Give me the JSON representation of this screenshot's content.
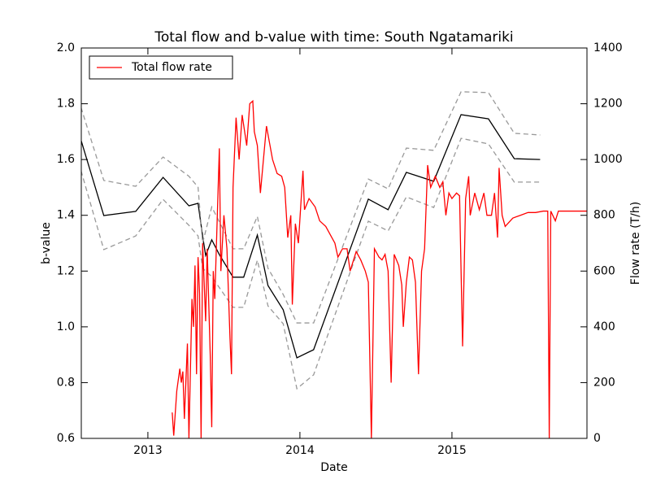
{
  "chart_data": {
    "type": "line",
    "title": "Total flow and b-value with time: South Ngatamariki",
    "xlabel": "Date",
    "ylabel": "b-value",
    "y2label": "Flow rate (T/h)",
    "xlim": [
      2012.562,
      2015.888
    ],
    "xticks": [
      2013,
      2014,
      2015
    ],
    "ylim": [
      0.6,
      2.0
    ],
    "yticks": [
      0.6,
      0.8,
      {
        "value": 1,
        "label": "1.0"
      },
      1.2,
      1.4,
      1.6,
      1.8,
      {
        "value": 2,
        "label": "2.0"
      }
    ],
    "y2lim": [
      0,
      1400
    ],
    "y2ticks": [
      0,
      200,
      400,
      600,
      800,
      1000,
      1200,
      1400
    ],
    "y2color": "#ff0000",
    "legend": "upper left",
    "series": [
      {
        "color": "#000000",
        "linestyle": "solid",
        "x": [
          2012.56,
          2012.71,
          2012.92,
          2013.1,
          2013.27,
          2013.33,
          2013.36,
          2013.38,
          2013.42,
          2013.47,
          2013.56,
          2013.63,
          2013.72,
          2013.79,
          2013.89,
          2013.98,
          2014.09,
          2014.45,
          2014.58,
          2014.7,
          2014.88,
          2015.06,
          2015.24,
          2015.41,
          2015.58
        ],
        "values": [
          1.67,
          1.399,
          1.414,
          1.536,
          1.434,
          1.443,
          1.326,
          1.256,
          1.312,
          1.259,
          1.178,
          1.178,
          1.329,
          1.148,
          1.061,
          0.889,
          0.918,
          1.458,
          1.42,
          1.554,
          1.522,
          1.761,
          1.746,
          1.603,
          1.6
        ]
      },
      {
        "color": "#999999",
        "linestyle": "dashed",
        "x": [
          2012.56,
          2012.71,
          2012.92,
          2013.1,
          2013.27,
          2013.33,
          2013.36,
          2013.42,
          2013.56,
          2013.63,
          2013.72,
          2013.79,
          2013.89,
          2013.98,
          2014.09,
          2014.45,
          2014.58,
          2014.7,
          2014.88,
          2015.06,
          2015.24,
          2015.41,
          2015.58
        ],
        "values": [
          1.787,
          1.525,
          1.504,
          1.609,
          1.54,
          1.501,
          1.3,
          1.43,
          1.28,
          1.28,
          1.396,
          1.21,
          1.116,
          1.014,
          1.014,
          1.53,
          1.495,
          1.641,
          1.633,
          1.843,
          1.84,
          1.694,
          1.688
        ]
      },
      {
        "color": "#999999",
        "linestyle": "dashed",
        "x": [
          2012.56,
          2012.71,
          2012.92,
          2013.1,
          2013.27,
          2013.33,
          2013.36,
          2013.42,
          2013.56,
          2013.63,
          2013.72,
          2013.79,
          2013.89,
          2013.98,
          2014.09,
          2014.45,
          2014.58,
          2014.7,
          2014.88,
          2015.06,
          2015.24,
          2015.41,
          2015.58
        ],
        "values": [
          1.56,
          1.277,
          1.326,
          1.457,
          1.364,
          1.326,
          1.21,
          1.18,
          1.07,
          1.07,
          1.239,
          1.075,
          1.011,
          0.778,
          0.828,
          1.379,
          1.344,
          1.466,
          1.428,
          1.676,
          1.656,
          1.519,
          1.519
        ]
      },
      {
        "name": "Total flow rate",
        "color": "#ff0000",
        "linestyle": "solid",
        "axis": "y2",
        "x": [
          2013.16,
          2013.17,
          2013.19,
          2013.21,
          2013.22,
          2013.23,
          2013.24,
          2013.26,
          2013.27,
          2013.29,
          2013.3,
          2013.31,
          2013.32,
          2013.33,
          2013.34,
          2013.35,
          2013.36,
          2013.38,
          2013.39,
          2013.41,
          2013.42,
          2013.43,
          2013.44,
          2013.47,
          2013.48,
          2013.5,
          2013.52,
          2013.54,
          2013.55,
          2013.56,
          2013.58,
          2013.6,
          2013.62,
          2013.65,
          2013.67,
          2013.69,
          2013.7,
          2013.72,
          2013.74,
          2013.76,
          2013.78,
          2013.8,
          2013.82,
          2013.85,
          2013.88,
          2013.9,
          2013.92,
          2013.94,
          2013.95,
          2013.97,
          2013.99,
          2014.02,
          2014.03,
          2014.06,
          2014.1,
          2014.13,
          2014.17,
          2014.2,
          2014.23,
          2014.25,
          2014.28,
          2014.31,
          2014.33,
          2014.37,
          2014.4,
          2014.43,
          2014.45,
          2014.47,
          2014.49,
          2014.52,
          2014.54,
          2014.56,
          2014.58,
          2014.6,
          2014.62,
          2014.65,
          2014.67,
          2014.68,
          2014.7,
          2014.72,
          2014.74,
          2014.76,
          2014.78,
          2014.8,
          2014.82,
          2014.84,
          2014.86,
          2014.89,
          2014.92,
          2014.94,
          2014.96,
          2014.98,
          2015.0,
          2015.03,
          2015.05,
          2015.07,
          2015.09,
          2015.11,
          2015.12,
          2015.15,
          2015.18,
          2015.21,
          2015.23,
          2015.26,
          2015.28,
          2015.3,
          2015.31,
          2015.33,
          2015.35,
          2015.4,
          2015.45,
          2015.5,
          2015.55,
          2015.6,
          2015.63,
          2015.64,
          2015.65,
          2015.68,
          2015.7,
          2015.8,
          2015.888
        ],
        "values": [
          93,
          10,
          170,
          250,
          200,
          240,
          70,
          340,
          0,
          500,
          400,
          620,
          230,
          650,
          520,
          0,
          700,
          420,
          680,
          300,
          40,
          600,
          500,
          1040,
          600,
          800,
          680,
          360,
          230,
          900,
          1150,
          1000,
          1160,
          1050,
          1200,
          1210,
          1100,
          1050,
          880,
          1000,
          1120,
          1060,
          1000,
          950,
          940,
          900,
          720,
          800,
          480,
          770,
          700,
          960,
          820,
          860,
          830,
          780,
          760,
          730,
          700,
          650,
          680,
          680,
          600,
          670,
          640,
          600,
          560,
          0,
          680,
          650,
          640,
          660,
          600,
          200,
          660,
          620,
          550,
          400,
          560,
          650,
          640,
          560,
          230,
          600,
          680,
          980,
          900,
          940,
          900,
          920,
          800,
          880,
          860,
          880,
          870,
          330,
          860,
          940,
          800,
          880,
          820,
          880,
          800,
          800,
          880,
          720,
          970,
          800,
          760,
          790,
          800,
          810,
          810,
          815,
          815,
          0,
          815,
          780,
          815,
          815,
          815
        ]
      }
    ]
  }
}
